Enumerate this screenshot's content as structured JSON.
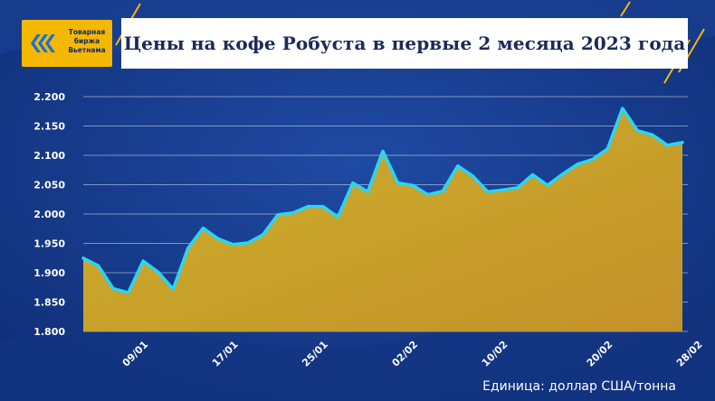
{
  "header": {
    "title": "Цены на кофе Робуста в первые 2 месяца 2023 года",
    "logo_lines": [
      "Товарная",
      "биржа",
      "Вьетнама"
    ]
  },
  "unit_label": "Единица: доллар США/тонна",
  "colors": {
    "background": "#163b8c",
    "line": "#27d6f5",
    "area": "#c9a826",
    "grid": "#ffffff",
    "accent": "#f5b800"
  },
  "chart_data": {
    "type": "area",
    "title": "",
    "xlabel": "",
    "ylabel": "",
    "ylim": [
      1800,
      2200
    ],
    "yticks": [
      1800,
      1850,
      1900,
      1950,
      2000,
      2050,
      2100,
      2150,
      2200
    ],
    "ytick_labels": [
      "1.800",
      "1.850",
      "1.900",
      "1.950",
      "2.000",
      "2.050",
      "2.100",
      "2.150",
      "2.200"
    ],
    "xtick_labels": [
      "09/01",
      "17/01",
      "25/01",
      "02/02",
      "10/02",
      "20/02",
      "28/02"
    ],
    "xtick_indices": [
      4,
      10,
      16,
      22,
      28,
      35,
      41
    ],
    "grid": true,
    "series": [
      {
        "values": [
          1925,
          1912,
          1873,
          1866,
          1920,
          1901,
          1872,
          1942,
          1976,
          1958,
          1948,
          1951,
          1965,
          1999,
          2002,
          2013,
          2013,
          1995,
          2053,
          2038,
          2107,
          2053,
          2049,
          2033,
          2039,
          2082,
          2065,
          2038,
          2041,
          2045,
          2067,
          2049,
          2068,
          2085,
          2093,
          2111,
          2180,
          2142,
          2135,
          2117,
          2122
        ]
      }
    ]
  }
}
